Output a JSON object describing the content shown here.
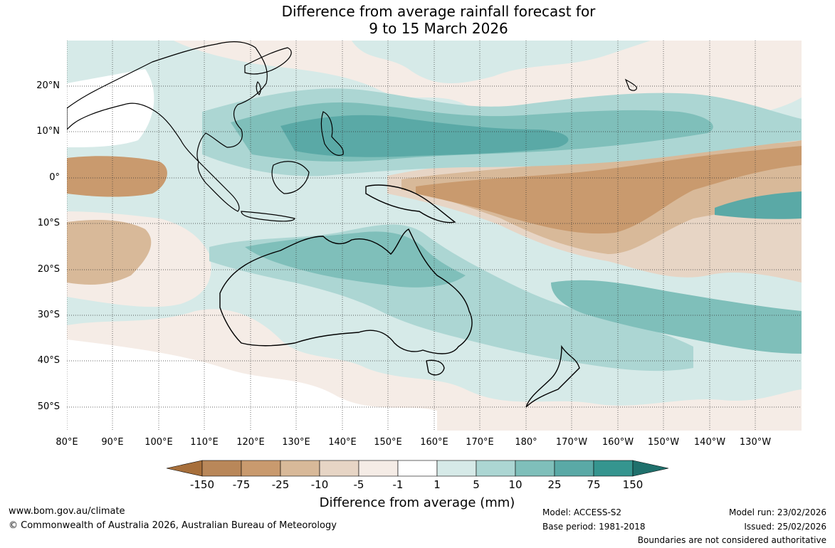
{
  "title": {
    "line1": "Difference from average rainfall forecast for",
    "line2": "9 to 15 March 2026"
  },
  "lat_labels": [
    "20°N",
    "10°N",
    "0°",
    "10°S",
    "20°S",
    "30°S",
    "40°S",
    "50°S"
  ],
  "lon_labels": [
    "80°E",
    "90°E",
    "100°E",
    "110°E",
    "120°E",
    "130°E",
    "140°E",
    "150°E",
    "160°E",
    "170°E",
    "180°",
    "170°W",
    "160°W",
    "150°W",
    "140°W",
    "130°W"
  ],
  "legend": {
    "title": "Difference from average (mm)",
    "ticks": [
      "-150",
      "-75",
      "-25",
      "-10",
      "-5",
      "-1",
      "1",
      "5",
      "10",
      "25",
      "75",
      "150"
    ],
    "colors": [
      "#a76f3b",
      "#b98759",
      "#c99a6e",
      "#d8b999",
      "#e7d5c5",
      "#f5ece6",
      "#ffffff",
      "#d6eae8",
      "#acd6d3",
      "#7fbfba",
      "#5aa9a6",
      "#35958f",
      "#1f706c"
    ]
  },
  "footer": {
    "website": "www.bom.gov.au/climate",
    "copyright": "© Commonwealth of Australia 2026, Australian Bureau of Meteorology",
    "model": "Model: ACCESS-S2",
    "base_period": "Base period: 1981-2018",
    "model_run": "Model run: 23/02/2026",
    "issued": "Issued: 25/02/2026",
    "disclaimer": "Boundaries are not considered authoritative"
  }
}
